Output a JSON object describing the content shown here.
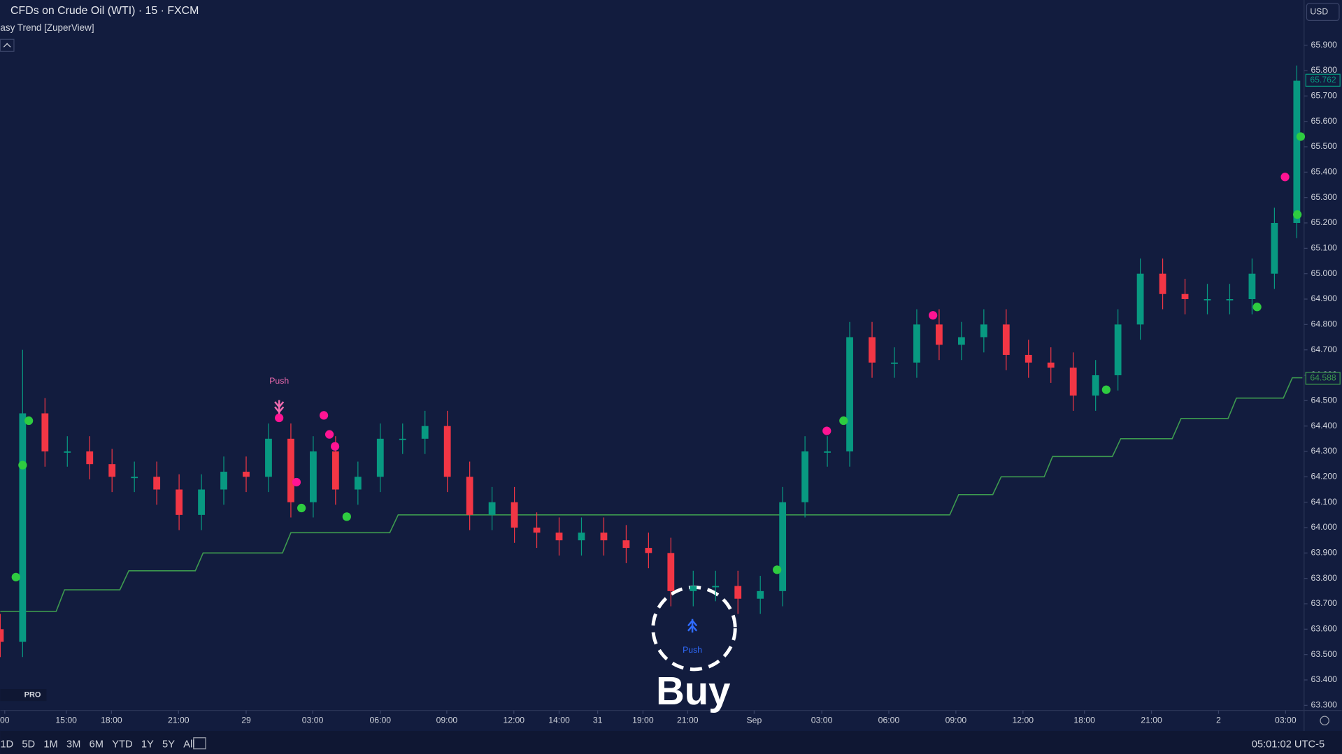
{
  "ui": {
    "symbol": "CFDs on Crude Oil (WTI) · 15 · FXCM",
    "indicator": "asy Trend [ZuperView]",
    "currency": "USD",
    "ranges": [
      "1D",
      "5D",
      "1M",
      "3M",
      "6M",
      "YTD",
      "1Y",
      "5Y",
      "All"
    ],
    "clock": "05:01:02 UTC-5",
    "badge": "PRO"
  },
  "chart_data": {
    "type": "candlestick",
    "x": [
      0,
      4,
      8,
      12,
      16,
      20,
      24,
      28,
      32,
      36,
      40,
      44,
      48,
      52,
      56,
      60,
      64,
      68,
      72,
      76,
      80,
      84,
      88,
      92,
      96,
      100,
      104,
      108,
      112,
      116,
      120,
      124,
      128,
      132,
      136,
      140,
      144,
      148,
      152,
      156,
      160,
      164,
      168,
      172,
      176,
      180,
      184,
      188,
      192,
      196,
      200,
      204,
      208,
      212,
      216,
      220,
      224,
      228,
      232
    ],
    "open": [
      63.6,
      63.55,
      64.45,
      64.3,
      64.3,
      64.25,
      64.2,
      64.2,
      64.15,
      64.05,
      64.15,
      64.22,
      64.2,
      64.35,
      64.1,
      64.3,
      64.15,
      64.2,
      64.35,
      64.35,
      64.4,
      64.2,
      64.05,
      64.1,
      64.0,
      63.98,
      63.95,
      63.98,
      63.95,
      63.92,
      63.9,
      63.75,
      63.77,
      63.77,
      63.72,
      63.75,
      64.1,
      64.3,
      64.3,
      64.75,
      64.65,
      64.65,
      64.8,
      64.72,
      64.75,
      64.8,
      64.68,
      64.65,
      64.63,
      64.52,
      64.6,
      64.8,
      65.0,
      64.92,
      64.9,
      64.9,
      64.9,
      65.0,
      65.2
    ],
    "high": [
      63.66,
      64.7,
      64.51,
      64.36,
      64.36,
      64.31,
      64.26,
      64.26,
      64.21,
      64.21,
      64.28,
      64.28,
      64.41,
      64.41,
      64.36,
      64.36,
      64.26,
      64.41,
      64.41,
      64.46,
      64.46,
      64.26,
      64.16,
      64.16,
      64.06,
      64.04,
      64.04,
      64.04,
      64.01,
      63.98,
      63.96,
      63.83,
      63.83,
      63.83,
      63.81,
      64.16,
      64.36,
      64.36,
      64.81,
      64.81,
      64.71,
      64.86,
      64.86,
      64.81,
      64.86,
      64.86,
      64.74,
      64.71,
      64.69,
      64.66,
      64.86,
      65.06,
      65.06,
      64.98,
      64.96,
      64.96,
      65.06,
      65.26,
      65.82
    ],
    "low": [
      63.49,
      63.49,
      64.24,
      64.24,
      64.19,
      64.14,
      64.14,
      64.09,
      63.99,
      63.99,
      64.09,
      64.14,
      64.14,
      64.04,
      64.04,
      64.09,
      64.09,
      64.14,
      64.29,
      64.29,
      64.14,
      63.99,
      63.99,
      63.94,
      63.92,
      63.89,
      63.89,
      63.89,
      63.86,
      63.84,
      63.69,
      63.69,
      63.71,
      63.66,
      63.66,
      63.69,
      64.04,
      64.24,
      64.24,
      64.59,
      64.59,
      64.59,
      64.66,
      64.66,
      64.69,
      64.62,
      64.59,
      64.57,
      64.46,
      64.46,
      64.54,
      64.74,
      64.86,
      64.84,
      64.84,
      64.84,
      64.84,
      64.94,
      65.14
    ],
    "close": [
      63.55,
      64.45,
      64.3,
      64.3,
      64.25,
      64.2,
      64.2,
      64.15,
      64.05,
      64.15,
      64.22,
      64.2,
      64.35,
      64.1,
      64.3,
      64.15,
      64.2,
      64.35,
      64.35,
      64.4,
      64.2,
      64.05,
      64.1,
      64.0,
      63.98,
      63.95,
      63.98,
      63.95,
      63.92,
      63.9,
      63.75,
      63.77,
      63.77,
      63.72,
      63.75,
      64.1,
      64.3,
      64.3,
      64.75,
      64.65,
      64.65,
      64.8,
      64.72,
      64.75,
      64.8,
      64.68,
      64.65,
      64.63,
      64.52,
      64.6,
      64.8,
      65.0,
      64.92,
      64.9,
      64.9,
      64.9,
      65.0,
      65.2,
      65.76
    ],
    "up_color": "#089981",
    "down_color": "#f23645",
    "trend": {
      "color": "#3d9a4f",
      "x": [
        0,
        10,
        11.5,
        21.4,
        23,
        34.9,
        36.3,
        50.5,
        52,
        69.7,
        71.2,
        169.9,
        171.5,
        177.6,
        179.1,
        186.8,
        188.3,
        199,
        200.5,
        209.7,
        211.3,
        219.7,
        221.2,
        229.6,
        231.2,
        233
      ],
      "values": [
        63.67,
        63.67,
        63.755,
        63.755,
        63.83,
        63.83,
        63.9,
        63.9,
        63.98,
        63.98,
        64.05,
        64.05,
        64.13,
        64.13,
        64.2,
        64.2,
        64.28,
        64.28,
        64.35,
        64.35,
        64.43,
        64.43,
        64.51,
        64.51,
        64.59,
        64.59
      ]
    },
    "signals": [
      {
        "color": "#2ecc40",
        "x": [
          2.8,
          4.0,
          5.1,
          53.9,
          62.0,
          139.0,
          150.9,
          197.9,
          224.9,
          232.1,
          232.7
        ],
        "values": [
          63.805,
          64.246,
          64.421,
          64.077,
          64.043,
          63.834,
          64.421,
          64.543,
          64.869,
          65.233,
          65.54
        ]
      },
      {
        "color": "#ff1493",
        "x": [
          49.9,
          57.9,
          58.9,
          59.9,
          53.0,
          147.9,
          166.9,
          229.9
        ],
        "values": [
          64.432,
          64.442,
          64.367,
          64.32,
          64.179,
          64.381,
          64.836,
          65.381
        ]
      }
    ],
    "annotations": {
      "sell": "Push",
      "buy_push": "Push",
      "buy": "Buy"
    },
    "last_price": 65.762,
    "trend_price": 64.588,
    "xlim": [
      0,
      233
    ],
    "xticks": [
      {
        "value": 0.8,
        "label": "00"
      },
      {
        "value": 11.8,
        "label": "15:00"
      },
      {
        "value": 19.9,
        "label": "18:00"
      },
      {
        "value": 31.9,
        "label": "21:00"
      },
      {
        "value": 44,
        "label": "29"
      },
      {
        "value": 55.9,
        "label": "03:00"
      },
      {
        "value": 68,
        "label": "06:00"
      },
      {
        "value": 79.9,
        "label": "09:00"
      },
      {
        "value": 91.9,
        "label": "12:00"
      },
      {
        "value": 100,
        "label": "14:00"
      },
      {
        "value": 106.9,
        "label": "31"
      },
      {
        "value": 115,
        "label": "19:00"
      },
      {
        "value": 123,
        "label": "21:00"
      },
      {
        "value": 134.9,
        "label": "Sep"
      },
      {
        "value": 147,
        "label": "03:00"
      },
      {
        "value": 159,
        "label": "06:00"
      },
      {
        "value": 171,
        "label": "09:00"
      },
      {
        "value": 183,
        "label": "12:00"
      },
      {
        "value": 194,
        "label": "18:00"
      },
      {
        "value": 206,
        "label": "21:00"
      },
      {
        "value": 218,
        "label": "2"
      },
      {
        "value": 230,
        "label": "03:00"
      }
    ],
    "ylim": [
      63.28,
      66.078
    ],
    "yticks": [
      {
        "value": 63.3,
        "label": "63.300"
      },
      {
        "value": 63.4,
        "label": "63.400"
      },
      {
        "value": 63.5,
        "label": "63.500"
      },
      {
        "value": 63.6,
        "label": "63.600"
      },
      {
        "value": 63.7,
        "label": "63.700"
      },
      {
        "value": 63.8,
        "label": "63.800"
      },
      {
        "value": 63.9,
        "label": "63.900"
      },
      {
        "value": 64.0,
        "label": "64.000"
      },
      {
        "value": 64.1,
        "label": "64.100"
      },
      {
        "value": 64.2,
        "label": "64.200"
      },
      {
        "value": 64.3,
        "label": "64.300"
      },
      {
        "value": 64.4,
        "label": "64.400"
      },
      {
        "value": 64.5,
        "label": "64.500"
      },
      {
        "value": 64.6,
        "label": "64.600"
      },
      {
        "value": 64.7,
        "label": "64.700"
      },
      {
        "value": 64.8,
        "label": "64.800"
      },
      {
        "value": 64.9,
        "label": "64.900"
      },
      {
        "value": 65.0,
        "label": "65.000"
      },
      {
        "value": 65.1,
        "label": "65.100"
      },
      {
        "value": 65.2,
        "label": "65.200"
      },
      {
        "value": 65.3,
        "label": "65.300"
      },
      {
        "value": 65.4,
        "label": "65.400"
      },
      {
        "value": 65.5,
        "label": "65.500"
      },
      {
        "value": 65.6,
        "label": "65.600"
      },
      {
        "value": 65.7,
        "label": "65.700"
      },
      {
        "value": 65.8,
        "label": "65.800"
      },
      {
        "value": 65.9,
        "label": "65.900"
      }
    ]
  }
}
